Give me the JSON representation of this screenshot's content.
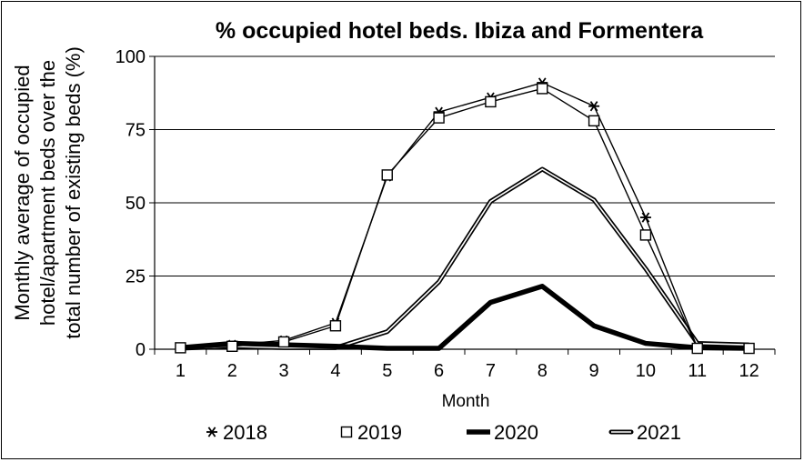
{
  "chart_data": {
    "type": "line",
    "title": "% occupied hotel beds. Ibiza and Formentera",
    "xlabel": "Month",
    "ylabel_lines": [
      "Monthly average of occupied",
      "hotel/apartment beds over the",
      "total number of existing beds (%)"
    ],
    "ylim": [
      0,
      100
    ],
    "yticks": [
      0,
      25,
      50,
      75,
      100
    ],
    "categories": [
      "1",
      "2",
      "3",
      "4",
      "5",
      "6",
      "7",
      "8",
      "9",
      "10",
      "11",
      "12"
    ],
    "grid": true,
    "legend_position": "bottom",
    "series": [
      {
        "name": "2018",
        "marker": "asterisk",
        "values": [
          0.5,
          1.5,
          3,
          9,
          59,
          81,
          86,
          91,
          83,
          45,
          0.5,
          0.3
        ]
      },
      {
        "name": "2019",
        "marker": "square",
        "values": [
          0.5,
          1,
          2.5,
          8,
          59.5,
          79,
          84.5,
          89,
          78,
          39,
          0.3,
          0.3
        ]
      },
      {
        "name": "2020",
        "marker": "thick",
        "values": [
          0.5,
          2,
          1.5,
          1,
          0.3,
          0.3,
          16,
          21.5,
          8,
          2,
          0.5,
          0.3
        ]
      },
      {
        "name": "2021",
        "marker": "double",
        "values": [
          0.3,
          1,
          0.5,
          0.5,
          6,
          23,
          50.5,
          61.5,
          51,
          27.5,
          2,
          1.5
        ]
      }
    ]
  }
}
